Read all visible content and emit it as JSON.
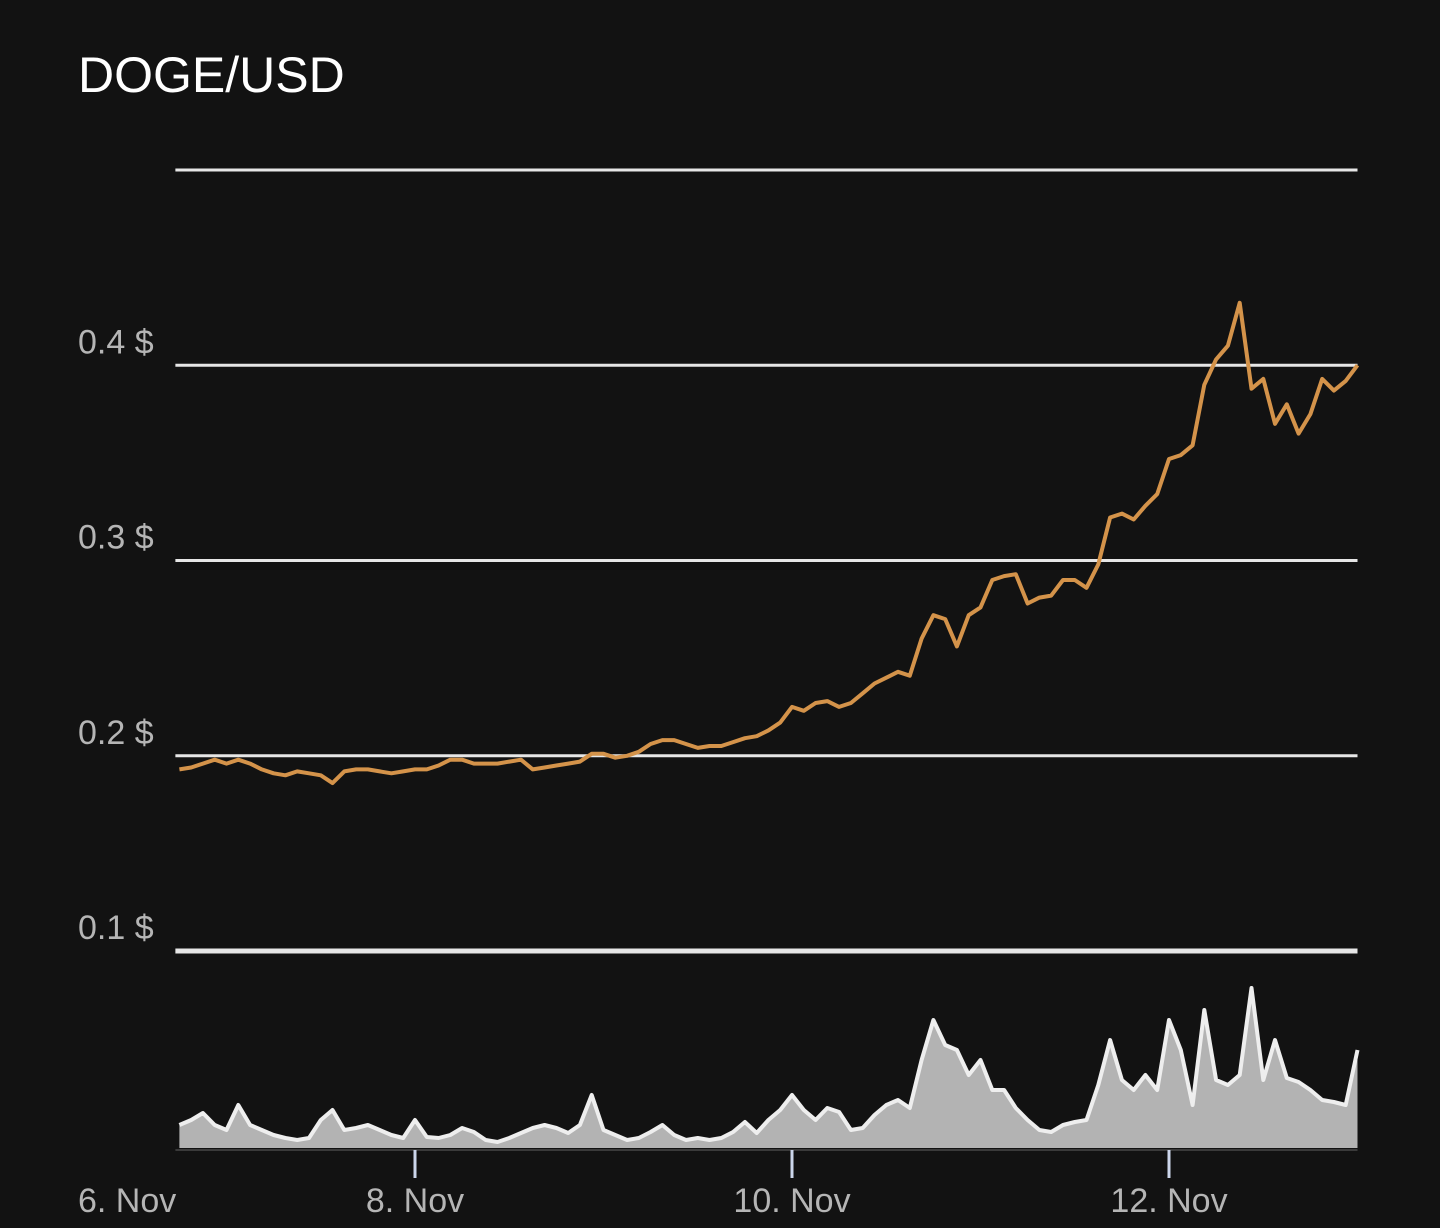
{
  "chart_data": {
    "type": "line",
    "title": "DOGE/USD",
    "x": [
      6.75,
      6.8125,
      6.875,
      6.9375,
      7,
      7.0625,
      7.125,
      7.1875,
      7.25,
      7.3125,
      7.375,
      7.4375,
      7.5,
      7.5625,
      7.625,
      7.6875,
      7.75,
      7.8125,
      7.875,
      7.9375,
      8,
      8.0625,
      8.125,
      8.1875,
      8.25,
      8.3125,
      8.375,
      8.4375,
      8.5,
      8.5625,
      8.625,
      8.6875,
      8.75,
      8.8125,
      8.875,
      8.9375,
      9,
      9.0625,
      9.125,
      9.1875,
      9.25,
      9.3125,
      9.375,
      9.4375,
      9.5,
      9.5625,
      9.625,
      9.6875,
      9.75,
      9.8125,
      9.875,
      9.9375,
      10,
      10.0625,
      10.125,
      10.1875,
      10.25,
      10.3125,
      10.375,
      10.4375,
      10.5,
      10.5625,
      10.625,
      10.6875,
      10.75,
      10.8125,
      10.875,
      10.9375,
      11,
      11.0625,
      11.125,
      11.1875,
      11.25,
      11.3125,
      11.375,
      11.4375,
      11.5,
      11.5625,
      11.625,
      11.6875,
      11.75,
      11.8125,
      11.875,
      11.9375,
      12,
      12.0625,
      12.125,
      12.1875,
      12.25,
      12.3125,
      12.375,
      12.4375,
      12.5,
      12.5625,
      12.625,
      12.6875,
      12.75,
      12.8125,
      12.875,
      12.9375,
      13
    ],
    "values": [
      0.193,
      0.194,
      0.196,
      0.198,
      0.196,
      0.198,
      0.196,
      0.193,
      0.191,
      0.19,
      0.192,
      0.191,
      0.19,
      0.186,
      0.192,
      0.193,
      0.193,
      0.192,
      0.191,
      0.192,
      0.193,
      0.193,
      0.195,
      0.198,
      0.198,
      0.196,
      0.196,
      0.196,
      0.197,
      0.198,
      0.193,
      0.194,
      0.195,
      0.196,
      0.197,
      0.201,
      0.201,
      0.199,
      0.2,
      0.202,
      0.206,
      0.208,
      0.208,
      0.206,
      0.204,
      0.205,
      0.205,
      0.207,
      0.209,
      0.21,
      0.213,
      0.217,
      0.225,
      0.223,
      0.227,
      0.228,
      0.225,
      0.227,
      0.232,
      0.237,
      0.24,
      0.243,
      0.241,
      0.26,
      0.272,
      0.27,
      0.256,
      0.272,
      0.276,
      0.29,
      0.292,
      0.293,
      0.278,
      0.281,
      0.282,
      0.29,
      0.29,
      0.286,
      0.298,
      0.322,
      0.324,
      0.321,
      0.328,
      0.334,
      0.352,
      0.354,
      0.359,
      0.39,
      0.403,
      0.41,
      0.432,
      0.388,
      0.393,
      0.37,
      0.38,
      0.365,
      0.375,
      0.393,
      0.387,
      0.392,
      0.4
    ],
    "color": "#d4934a",
    "volume": [
      23,
      28,
      35,
      23,
      18,
      43,
      23,
      18,
      13,
      10,
      8,
      10,
      28,
      38,
      18,
      20,
      23,
      18,
      13,
      10,
      28,
      11,
      10,
      13,
      20,
      16,
      8,
      6,
      10,
      15,
      20,
      23,
      20,
      15,
      23,
      53,
      18,
      13,
      8,
      10,
      16,
      23,
      13,
      8,
      10,
      8,
      10,
      16,
      26,
      15,
      28,
      38,
      53,
      38,
      28,
      40,
      36,
      18,
      20,
      33,
      43,
      48,
      40,
      88,
      128,
      103,
      98,
      73,
      88,
      58,
      58,
      40,
      28,
      18,
      16,
      23,
      26,
      28,
      63,
      108,
      68,
      58,
      73,
      58,
      128,
      98,
      43,
      138,
      68,
      63,
      73,
      160,
      68,
      108,
      70,
      66,
      58,
      48,
      46,
      43,
      98
    ],
    "volume_color": "#b3b3b3",
    "xlim": [
      6.75,
      13
    ],
    "xticks": [
      {
        "value": 6.75,
        "label": "6. Nov"
      },
      {
        "value": 8,
        "label": "8. Nov"
      },
      {
        "value": 10,
        "label": "10. Nov"
      },
      {
        "value": 12,
        "label": "12. Nov"
      }
    ],
    "ylim": [
      0.1,
      0.5
    ],
    "yticks": [
      {
        "value": 0.1,
        "label": "0.1 $"
      },
      {
        "value": 0.2,
        "label": "0.2 $"
      },
      {
        "value": 0.3,
        "label": "0.3 $"
      },
      {
        "value": 0.4,
        "label": "0.4 $"
      }
    ],
    "grid": true
  }
}
